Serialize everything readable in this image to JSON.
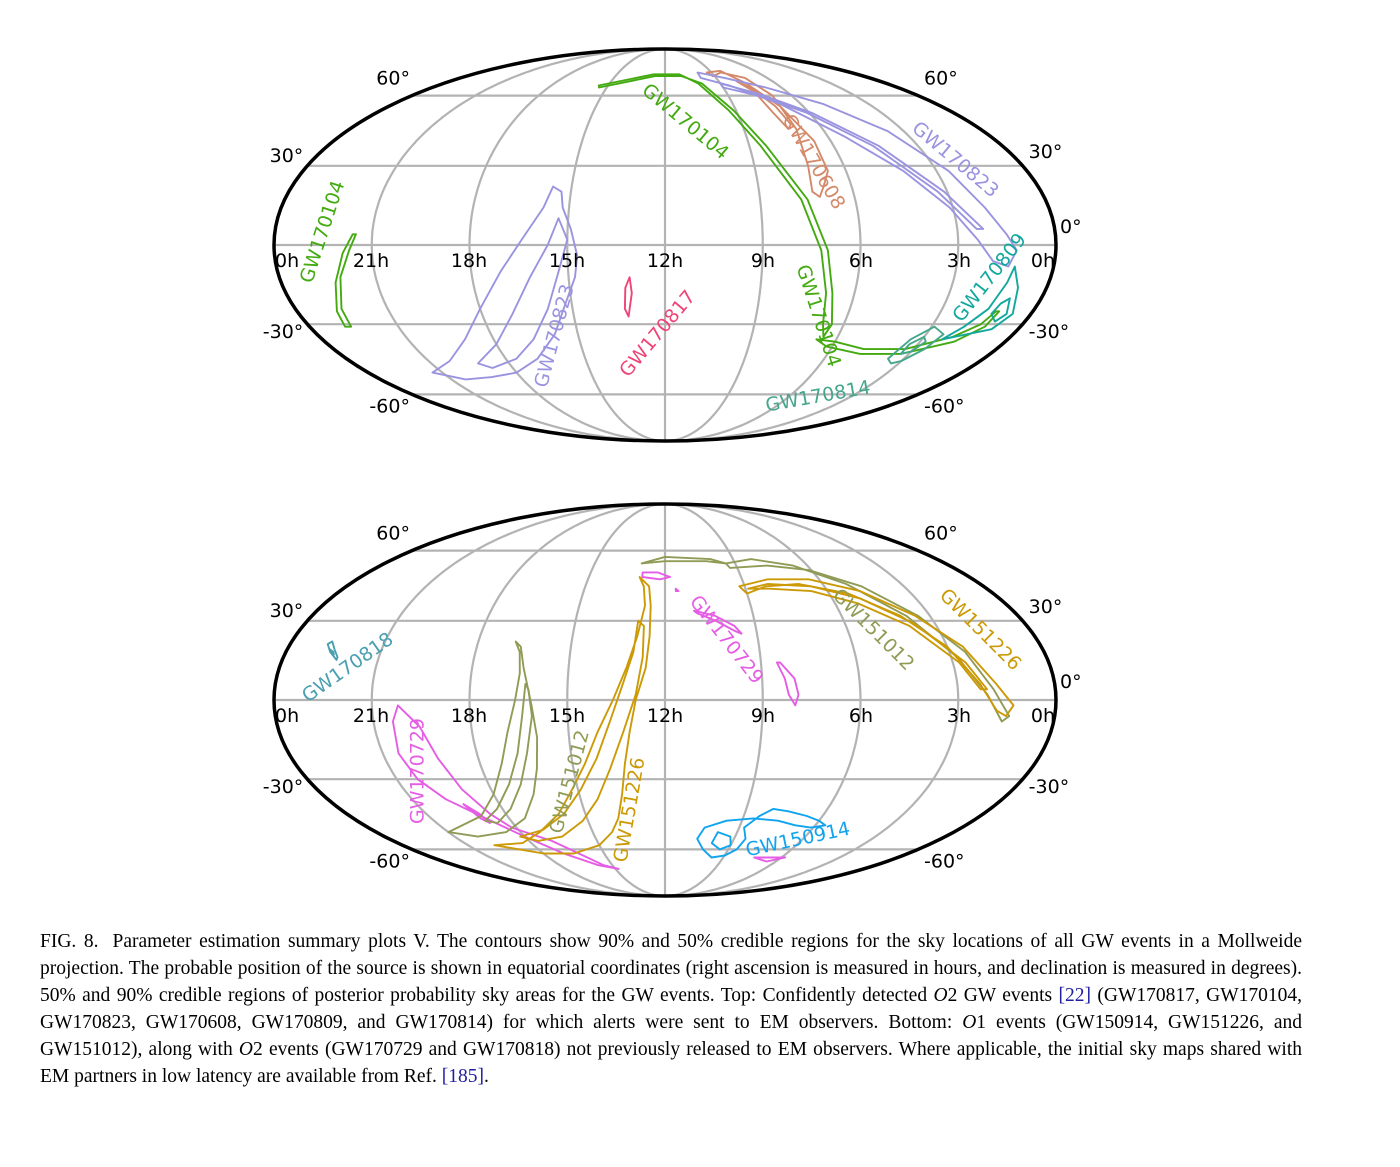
{
  "chart_data": [
    {
      "type": "skymap",
      "projection": "mollweide",
      "coordinates": "equatorial",
      "ra_tick_labels": [
        "0h",
        "21h",
        "18h",
        "15h",
        "12h",
        "9h",
        "6h",
        "3h",
        "0h"
      ],
      "dec_tick_labels": [
        "60°",
        "30°",
        "0°",
        "-30°",
        "-60°"
      ],
      "grid": true,
      "events": [
        {
          "name": "GW170104",
          "color": "#44aa11"
        },
        {
          "name": "GW170608",
          "color": "#d48a6a"
        },
        {
          "name": "GW170823",
          "color": "#9a94e0"
        },
        {
          "name": "GW170809",
          "color": "#13a89e"
        },
        {
          "name": "GW170817",
          "color": "#ee4477"
        },
        {
          "name": "GW170814",
          "color": "#44a68c"
        }
      ]
    },
    {
      "type": "skymap",
      "projection": "mollweide",
      "coordinates": "equatorial",
      "ra_tick_labels": [
        "0h",
        "21h",
        "18h",
        "15h",
        "12h",
        "9h",
        "6h",
        "3h",
        "0h"
      ],
      "dec_tick_labels": [
        "60°",
        "30°",
        "0°",
        "-30°",
        "-60°"
      ],
      "grid": true,
      "events": [
        {
          "name": "GW170818",
          "color": "#4aa0b0"
        },
        {
          "name": "GW170729",
          "color": "#e55ce5"
        },
        {
          "name": "GW151012",
          "color": "#909b55"
        },
        {
          "name": "GW151226",
          "color": "#cc9a06"
        },
        {
          "name": "GW150914",
          "color": "#11a4ee"
        }
      ]
    }
  ],
  "caption": {
    "fig_id": "FIG. 8.",
    "p1": "Parameter estimation summary plots V. The contours show 90% and 50% credible regions for the sky locations of all GW events in a Mollweide projection. The probable position of the source is shown in equatorial coordinates (right ascension is measured in hours, and declination is measured in degrees). 50% and 90% credible regions of posterior probability sky areas for the GW events. Top: Confidently detected ",
    "o2": "O",
    "o2n": "2",
    "p2": " GW events ",
    "ref1": "[22]",
    "p3": " (GW170817, GW170104, GW170823, GW170608, GW170809, and GW170814) for which alerts were sent to EM observers. Bottom: ",
    "o1": "O",
    "o1n": "1",
    "p4": " events (GW150914, GW151226, and GW151012), along with ",
    "o2b": "O",
    "o2bn": "2",
    "p5": " events (GW170729 and GW170818) not previously released to EM observers. Where applicable, the initial sky maps shared with EM partners in low latency are available from Ref. ",
    "ref2": "[185]",
    "p6": "."
  }
}
